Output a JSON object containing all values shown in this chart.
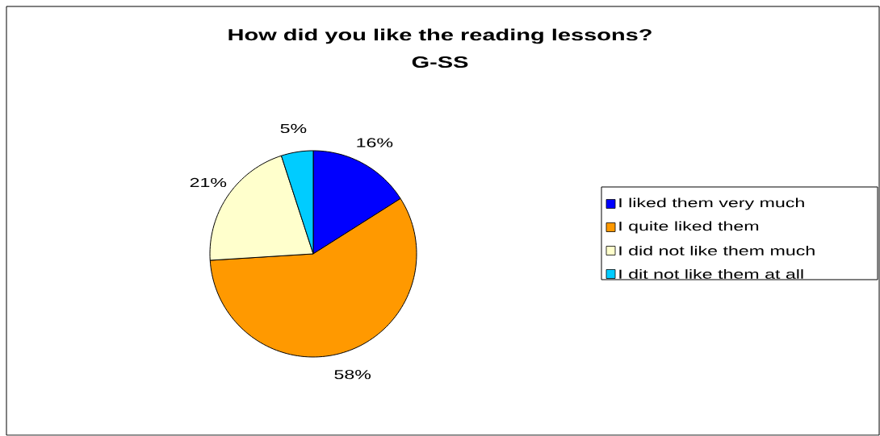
{
  "chart_data": {
    "type": "pie",
    "title": "How did you like the reading lessons?",
    "subtitle": "G-SS",
    "categories": [
      "I liked them very much",
      "I quite liked them",
      "I did not like them much",
      "I dit not like them at all"
    ],
    "values": [
      16,
      58,
      21,
      5
    ],
    "value_labels": [
      "16%",
      "58%",
      "21%",
      "5%"
    ],
    "colors": [
      "#0000ff",
      "#ff9900",
      "#ffffcc",
      "#00ccff"
    ],
    "legend": "right"
  }
}
